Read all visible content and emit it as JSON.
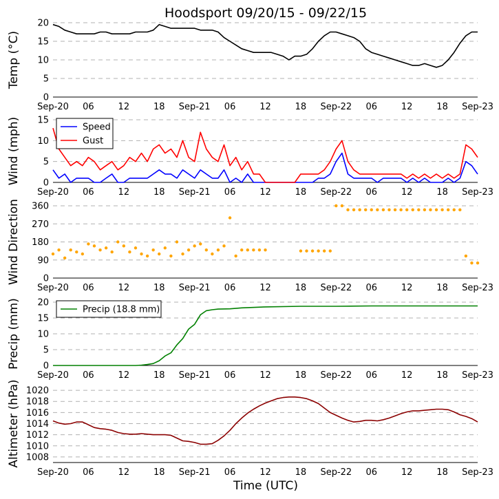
{
  "title": "Hoodsport 09/20/15 - 09/22/15",
  "x_axis": {
    "label": "Time (UTC)",
    "range_hours": [
      0,
      72
    ],
    "ticks_hours": [
      0,
      6,
      12,
      18,
      24,
      30,
      36,
      42,
      48,
      54,
      60,
      66,
      72
    ],
    "tick_labels": [
      "Sep-20",
      "06",
      "12",
      "18",
      "Sep-21",
      "06",
      "12",
      "18",
      "Sep-22",
      "06",
      "12",
      "18",
      "Sep-23"
    ]
  },
  "colors": {
    "temp": "#000000",
    "speed": "#0000ff",
    "gust": "#ff0000",
    "direction": "#ffa500",
    "precip": "#008000",
    "altimeter": "#8b0000",
    "grid": "#b0b0b0"
  },
  "chart_data": [
    {
      "type": "line",
      "panel": "temperature",
      "ylabel": "Temp (°C)",
      "ylim": [
        0,
        20
      ],
      "yticks": [
        0,
        5,
        10,
        15,
        20
      ],
      "grid": true,
      "series": [
        {
          "name": "Temperature",
          "x": [
            0,
            1,
            2,
            3,
            4,
            5,
            6,
            7,
            8,
            9,
            10,
            11,
            12,
            13,
            14,
            15,
            16,
            17,
            18,
            19,
            20,
            21,
            22,
            23,
            24,
            25,
            26,
            27,
            28,
            29,
            30,
            31,
            32,
            33,
            34,
            35,
            36,
            37,
            38,
            39,
            40,
            41,
            42,
            43,
            44,
            45,
            46,
            47,
            48,
            49,
            50,
            51,
            52,
            53,
            54,
            55,
            56,
            57,
            58,
            59,
            60,
            61,
            62,
            63,
            64,
            65,
            66,
            67,
            68,
            69,
            70,
            71,
            72
          ],
          "values": [
            19.5,
            19,
            18,
            17.5,
            17,
            17,
            17,
            17,
            17.5,
            17.5,
            17,
            17,
            17,
            17,
            17.5,
            17.5,
            17.5,
            18,
            19.5,
            19,
            18.5,
            18.5,
            18.5,
            18.5,
            18.5,
            18,
            18,
            18,
            17.5,
            16,
            15,
            14,
            13,
            12.5,
            12,
            12,
            12,
            12,
            11.5,
            11,
            10,
            11,
            11,
            11.5,
            13,
            15,
            16.5,
            17.5,
            17.5,
            17,
            16.5,
            16,
            15,
            13,
            12,
            11.5,
            11,
            10.5,
            10,
            9.5,
            9,
            8.5,
            8.5,
            9,
            8.5,
            8,
            8.5,
            10,
            12,
            14.5,
            16.5,
            17.5,
            17.5
          ]
        }
      ]
    },
    {
      "type": "line",
      "panel": "wind",
      "ylabel": "Wind (mph)",
      "ylim": [
        0,
        15
      ],
      "yticks": [
        0,
        5,
        10,
        15
      ],
      "grid": true,
      "legend": "top-left",
      "series": [
        {
          "name": "Speed",
          "x": [
            0,
            1,
            2,
            3,
            4,
            5,
            6,
            7,
            8,
            9,
            10,
            11,
            12,
            13,
            14,
            15,
            16,
            17,
            18,
            19,
            20,
            21,
            22,
            23,
            24,
            25,
            26,
            27,
            28,
            29,
            30,
            31,
            32,
            33,
            34,
            35,
            36,
            37,
            38,
            39,
            40,
            41,
            42,
            43,
            44,
            45,
            46,
            47,
            48,
            49,
            50,
            51,
            52,
            53,
            54,
            55,
            56,
            57,
            58,
            59,
            60,
            61,
            62,
            63,
            64,
            65,
            66,
            67,
            68,
            69,
            70,
            71,
            72
          ],
          "values": [
            3,
            1,
            2,
            0,
            1,
            1,
            1,
            0,
            0,
            1,
            2,
            0,
            0,
            1,
            1,
            1,
            1,
            2,
            3,
            2,
            2,
            1,
            3,
            2,
            1,
            3,
            2,
            1,
            1,
            3,
            0,
            1,
            0,
            2,
            0,
            0,
            0,
            0,
            0,
            0,
            0,
            0,
            0,
            0,
            0,
            1,
            1,
            2,
            5,
            7,
            2,
            1,
            1,
            1,
            1,
            0,
            1,
            1,
            1,
            1,
            0,
            1,
            0,
            1,
            0,
            0,
            0,
            1,
            0,
            1,
            5,
            4,
            2
          ]
        },
        {
          "name": "Gust",
          "x": [
            0,
            1,
            2,
            3,
            4,
            5,
            6,
            7,
            8,
            9,
            10,
            11,
            12,
            13,
            14,
            15,
            16,
            17,
            18,
            19,
            20,
            21,
            22,
            23,
            24,
            25,
            26,
            27,
            28,
            29,
            30,
            31,
            32,
            33,
            34,
            35,
            36,
            37,
            38,
            39,
            40,
            41,
            42,
            43,
            44,
            45,
            46,
            47,
            48,
            49,
            50,
            51,
            52,
            53,
            54,
            55,
            56,
            57,
            58,
            59,
            60,
            61,
            62,
            63,
            64,
            65,
            66,
            67,
            68,
            69,
            70,
            71,
            72
          ],
          "values": [
            13,
            8,
            6,
            4,
            5,
            4,
            6,
            5,
            3,
            4,
            5,
            3,
            4,
            6,
            5,
            7,
            5,
            8,
            9,
            7,
            8,
            6,
            10,
            6,
            5,
            12,
            8,
            6,
            5,
            9,
            4,
            6,
            3,
            5,
            2,
            2,
            0,
            0,
            0,
            0,
            0,
            0,
            2,
            2,
            2,
            2,
            3,
            5,
            8,
            10,
            5,
            3,
            2,
            2,
            2,
            2,
            2,
            2,
            2,
            2,
            1,
            2,
            1,
            2,
            1,
            2,
            1,
            2,
            1,
            2,
            9,
            8,
            6
          ]
        }
      ]
    },
    {
      "type": "scatter",
      "panel": "wind-direction",
      "ylabel": "Wind Direction",
      "ylim": [
        0,
        360
      ],
      "yticks": [
        0,
        90,
        180,
        270,
        360
      ],
      "grid": true,
      "series": [
        {
          "name": "Direction",
          "x": [
            0,
            1,
            2,
            3,
            4,
            5,
            6,
            7,
            8,
            9,
            10,
            11,
            12,
            13,
            14,
            15,
            16,
            17,
            18,
            19,
            20,
            21,
            22,
            23,
            24,
            25,
            26,
            27,
            28,
            29,
            30,
            31,
            32,
            33,
            34,
            35,
            36,
            37,
            38,
            39,
            40,
            41,
            42,
            43,
            44,
            45,
            46,
            47,
            48,
            49,
            50,
            51,
            52,
            53,
            54,
            55,
            56,
            57,
            58,
            59,
            60,
            61,
            62,
            63,
            64,
            65,
            66,
            67,
            68,
            69,
            70,
            71,
            72
          ],
          "values": [
            120,
            140,
            100,
            140,
            130,
            120,
            170,
            160,
            140,
            150,
            130,
            180,
            160,
            130,
            150,
            120,
            110,
            140,
            120,
            150,
            110,
            180,
            120,
            140,
            160,
            170,
            140,
            120,
            140,
            160,
            300,
            110,
            140,
            140,
            140,
            140,
            140,
            null,
            null,
            null,
            null,
            null,
            135,
            135,
            135,
            135,
            135,
            135,
            360,
            360,
            340,
            340,
            340,
            340,
            340,
            340,
            340,
            340,
            340,
            340,
            340,
            340,
            340,
            340,
            340,
            340,
            340,
            340,
            340,
            340,
            110,
            75,
            75
          ]
        }
      ]
    },
    {
      "type": "line",
      "panel": "precip",
      "ylabel": "Precip (mm)",
      "ylim": [
        0,
        20
      ],
      "yticks": [
        0,
        5,
        10,
        15,
        20
      ],
      "grid": true,
      "legend": "top-left",
      "series": [
        {
          "name": "Precip (18.8 mm)",
          "x": [
            0,
            3,
            6,
            9,
            12,
            14,
            15,
            16,
            17,
            18,
            19,
            20,
            21,
            22,
            23,
            24,
            25,
            26,
            27,
            28,
            30,
            32,
            36,
            42,
            48,
            54,
            60,
            66,
            72
          ],
          "values": [
            0,
            0,
            0,
            0,
            0,
            0,
            0.1,
            0.3,
            0.6,
            1.5,
            3,
            4,
            6.5,
            8.5,
            11.5,
            13,
            16,
            17.3,
            17.6,
            17.8,
            17.9,
            18.2,
            18.5,
            18.7,
            18.7,
            18.8,
            18.8,
            18.8,
            18.8
          ]
        }
      ]
    },
    {
      "type": "line",
      "panel": "altimeter",
      "ylabel": "Altimeter (hPa)",
      "ylim": [
        1007,
        1021
      ],
      "yticks": [
        1008,
        1010,
        1012,
        1014,
        1016,
        1018,
        1020
      ],
      "grid": true,
      "series": [
        {
          "name": "Altimeter",
          "x": [
            0,
            1,
            2,
            3,
            4,
            5,
            6,
            7,
            8,
            9,
            10,
            11,
            12,
            13,
            14,
            15,
            16,
            17,
            18,
            19,
            20,
            21,
            22,
            23,
            24,
            25,
            26,
            27,
            28,
            29,
            30,
            31,
            32,
            33,
            34,
            35,
            36,
            37,
            38,
            39,
            40,
            41,
            42,
            43,
            44,
            45,
            46,
            47,
            48,
            49,
            50,
            51,
            52,
            53,
            54,
            55,
            56,
            57,
            58,
            59,
            60,
            61,
            62,
            63,
            64,
            65,
            66,
            67,
            68,
            69,
            70,
            71,
            72
          ],
          "values": [
            1014.5,
            1014.1,
            1013.9,
            1014,
            1014.3,
            1014.3,
            1013.8,
            1013.3,
            1013.1,
            1013,
            1012.8,
            1012.4,
            1012.2,
            1012.1,
            1012.1,
            1012.2,
            1012.1,
            1012,
            1012,
            1012,
            1011.9,
            1011.4,
            1010.9,
            1010.8,
            1010.6,
            1010.3,
            1010.3,
            1010.4,
            1011,
            1011.8,
            1012.8,
            1014,
            1015,
            1015.9,
            1016.6,
            1017.2,
            1017.7,
            1018.1,
            1018.5,
            1018.7,
            1018.8,
            1018.8,
            1018.7,
            1018.5,
            1018.1,
            1017.6,
            1016.8,
            1016,
            1015.5,
            1015,
            1014.6,
            1014.3,
            1014.4,
            1014.6,
            1014.6,
            1014.5,
            1014.7,
            1015,
            1015.4,
            1015.8,
            1016.1,
            1016.3,
            1016.3,
            1016.4,
            1016.5,
            1016.6,
            1016.6,
            1016.5,
            1016.1,
            1015.6,
            1015.3,
            1014.9,
            1014.3
          ]
        }
      ]
    }
  ]
}
